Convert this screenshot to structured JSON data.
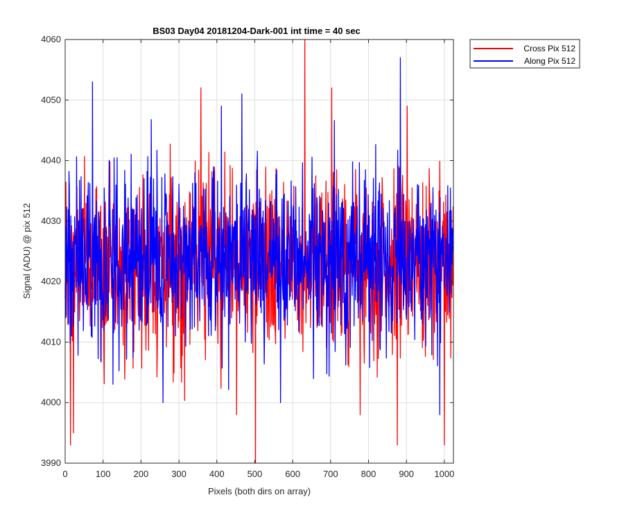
{
  "chart_data": {
    "type": "line",
    "title": "BS03 Day04 20181204-Dark-001 int time = 40 sec",
    "xlabel": "Pixels (both dirs on array)",
    "ylabel": "Signal (ADU) @ pix 512",
    "xlim": [
      0,
      1024
    ],
    "ylim": [
      3990,
      4060
    ],
    "xticks": [
      0,
      100,
      200,
      300,
      400,
      500,
      600,
      700,
      800,
      900,
      1000
    ],
    "yticks": [
      3990,
      4000,
      4010,
      4020,
      4030,
      4040,
      4050,
      4060
    ],
    "grid": true,
    "legend_position": "outside-top-right",
    "series": [
      {
        "name": "Cross Pix 512",
        "color": "#ff0000",
        "mean": 4023,
        "extremes": [
          [
            14,
            3993
          ],
          [
            22,
            3995
          ],
          [
            358,
            4052
          ],
          [
            452,
            3998
          ],
          [
            502,
            3990
          ],
          [
            632,
            4060
          ],
          [
            703,
            4052
          ],
          [
            778,
            3998
          ],
          [
            876,
            3993
          ],
          [
            902,
            4049
          ],
          [
            1000,
            3993
          ]
        ]
      },
      {
        "name": "Along Pix 512",
        "color": "#0000ff",
        "mean": 4024,
        "extremes": [
          [
            72,
            4053
          ],
          [
            258,
            4000
          ],
          [
            412,
            4049
          ],
          [
            466,
            4051
          ],
          [
            568,
            4000
          ],
          [
            884,
            4057
          ],
          [
            988,
            3998
          ]
        ]
      }
    ]
  }
}
